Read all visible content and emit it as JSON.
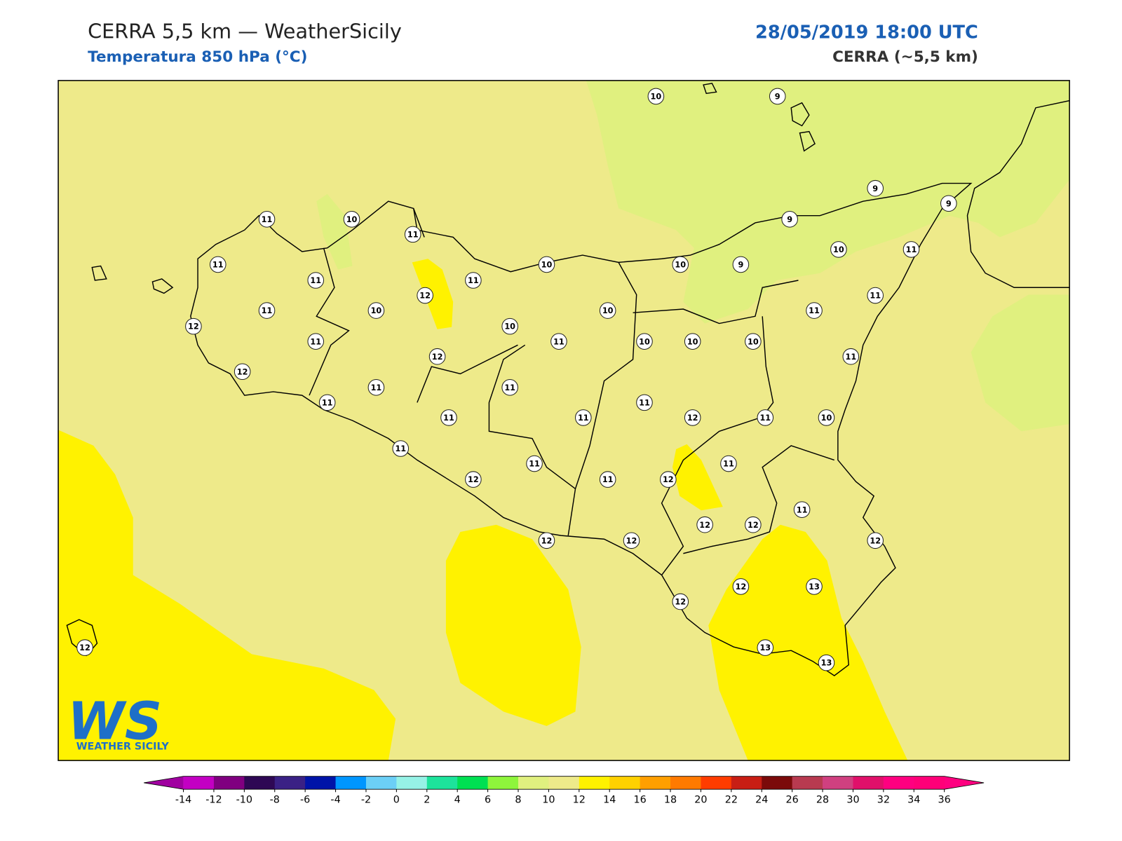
{
  "header": {
    "title": "CERRA 5,5 km — WeatherSicily",
    "subtitle": "Temperatura 850 hPa (°C)",
    "datetime": "28/05/2019 18:00 UTC",
    "model": "CERRA (~5,5 km)"
  },
  "station_values": [
    10,
    9,
    9,
    9,
    11,
    10,
    11,
    9,
    11,
    10,
    10,
    9,
    10,
    11,
    11,
    11,
    12,
    11,
    11,
    10,
    10,
    11,
    12,
    10,
    11,
    11,
    10,
    10,
    10,
    12,
    11,
    12,
    11,
    11,
    11,
    11,
    11,
    11,
    12,
    11,
    10,
    11,
    11,
    11,
    12,
    11,
    12,
    11,
    12,
    12,
    12,
    12,
    12,
    12,
    13,
    12,
    12,
    13,
    13
  ],
  "colorbar": {
    "ticks": [
      -14,
      -12,
      -10,
      -8,
      -6,
      -4,
      -2,
      0,
      2,
      4,
      6,
      8,
      10,
      12,
      14,
      16,
      18,
      20,
      22,
      24,
      26,
      28,
      30,
      32,
      34,
      36
    ],
    "colors": [
      "#c300c3",
      "#800080",
      "#2e0854",
      "#3a2185",
      "#0013a8",
      "#0096ff",
      "#6ccff6",
      "#96f2e6",
      "#1de39b",
      "#00e052",
      "#8ef53b",
      "#e0f07f",
      "#eeea8a",
      "#fff200",
      "#ffd100",
      "#ff9f00",
      "#ff7a00",
      "#ff3c00",
      "#c81e14",
      "#7b0a0a",
      "#b83a50",
      "#d04080",
      "#e0106a",
      "#ff0080",
      "#ff0078"
    ],
    "under_color": "#a000a0",
    "over_color": "#ff0080"
  },
  "logo": {
    "letters": "WS",
    "caption": "WEATHER SICILY"
  }
}
